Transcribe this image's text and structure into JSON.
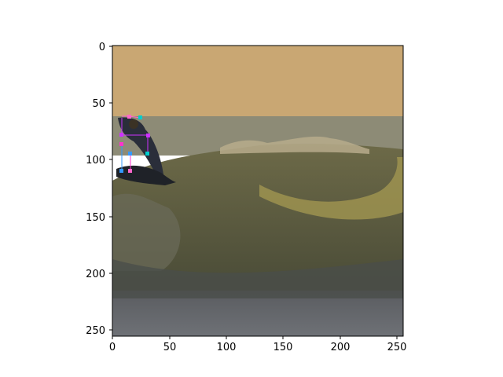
{
  "figure": {
    "x_ticks": [
      "0",
      "50",
      "100",
      "150",
      "200",
      "250"
    ],
    "y_ticks": [
      "0",
      "50",
      "100",
      "150",
      "200",
      "250"
    ]
  },
  "image": {
    "subject": "surfer riding a breaking wave at sunset",
    "colors": {
      "sky": "#c9a773",
      "sea_far": "#8d8b76",
      "wave_face": "#5b5a3a",
      "wave_glow": "#a59a52",
      "foam": "#b7ab8c",
      "water_near": "#4f5157",
      "surfer": "#2a2e3a"
    }
  },
  "keypoints": {
    "colors": [
      "#ff66cc",
      "#cc33ff",
      "#00cccc",
      "#3399ff",
      "#ff33cc"
    ]
  }
}
